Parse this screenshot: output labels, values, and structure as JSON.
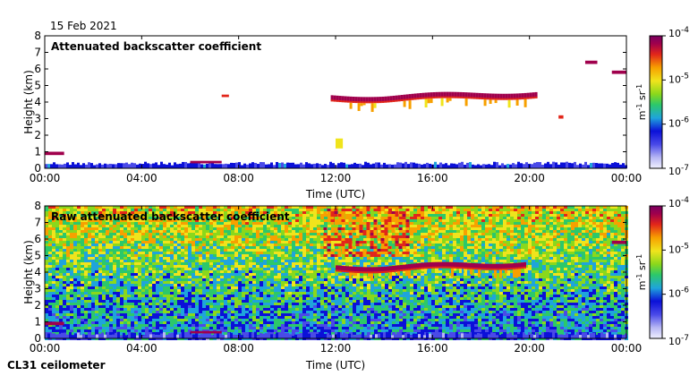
{
  "date": "15 Feb 2021",
  "instrument": "CL31 ceilometer",
  "colors": {
    "scale": [
      "#f0f0ff",
      "#b8b8f4",
      "#4a4ae8",
      "#0b10d8",
      "#1fa4dc",
      "#2cc86a",
      "#8ad81c",
      "#f0e41c",
      "#f7a000",
      "#e2261a",
      "#a0004c",
      "#780060"
    ]
  },
  "chart_data": [
    {
      "type": "heatmap",
      "title": "Attenuated backscatter coefficient",
      "xlabel": "Time (UTC)",
      "ylabel": "Height (km)",
      "xlim": [
        0,
        24
      ],
      "ylim": [
        0,
        8
      ],
      "xticks": [
        0,
        4,
        8,
        12,
        16,
        20,
        24
      ],
      "xtick_labels": [
        "00:00",
        "04:00",
        "08:00",
        "12:00",
        "16:00",
        "20:00",
        "00:00"
      ],
      "yticks": [
        0,
        1,
        2,
        3,
        4,
        5,
        6,
        7,
        8
      ],
      "ytick_labels": [
        "0",
        "1",
        "2",
        "3",
        "4",
        "5",
        "6",
        "7",
        "8"
      ],
      "colorbar": {
        "scale": "log",
        "range": [
          1e-07,
          0.0001
        ],
        "ticks": [
          "10^-7",
          "10^-6",
          "10^-5",
          "10^-4"
        ],
        "label_base": "m",
        "label_exp1": "-1",
        "label_mid": "sr",
        "label_exp2": "-1"
      },
      "layers": [
        {
          "name": "surface aerosol layer",
          "t_start": 0,
          "t_end": 24,
          "h_bottom": 0,
          "h_top": 0.4,
          "level": 0.25
        },
        {
          "name": "low layer segment",
          "t_start": 6,
          "t_end": 7.3,
          "h_bottom": 0.3,
          "h_top": 0.45,
          "level": 0.95
        },
        {
          "name": "early low cloud",
          "t_start": 0,
          "t_end": 0.8,
          "h_bottom": 0.8,
          "h_top": 1.0,
          "level": 0.9
        },
        {
          "name": "mid-level cloud",
          "t_start": 11.8,
          "t_end": 20.3,
          "h_bottom": 3.9,
          "h_top": 4.6,
          "level": 0.95
        },
        {
          "name": "upper cloud",
          "t_start": 22.3,
          "t_end": 22.8,
          "h_bottom": 6.3,
          "h_top": 6.5,
          "level": 0.9
        },
        {
          "name": "upper cloud right",
          "t_start": 23.4,
          "t_end": 24,
          "h_bottom": 5.7,
          "h_top": 5.9,
          "level": 0.9
        },
        {
          "name": "small cloud",
          "t_start": 7.3,
          "t_end": 7.6,
          "h_bottom": 4.3,
          "h_top": 4.45,
          "level": 0.85
        },
        {
          "name": "cloud fragment",
          "t_start": 21.2,
          "t_end": 21.4,
          "h_bottom": 3.0,
          "h_top": 3.2,
          "level": 0.85
        },
        {
          "name": "lower cloud fragment",
          "t_start": 12,
          "t_end": 12.3,
          "h_bottom": 1.2,
          "h_top": 1.8,
          "level": 0.6
        }
      ]
    },
    {
      "type": "heatmap",
      "title": "Raw attenuated backscatter coefficient",
      "xlabel": "Time (UTC)",
      "ylabel": "Height (km)",
      "xlim": [
        0,
        24
      ],
      "ylim": [
        0,
        8
      ],
      "xticks": [
        0,
        4,
        8,
        12,
        16,
        20,
        24
      ],
      "xtick_labels": [
        "00:00",
        "04:00",
        "08:00",
        "12:00",
        "16:00",
        "20:00",
        "00:00"
      ],
      "yticks": [
        0,
        1,
        2,
        3,
        4,
        5,
        6,
        7,
        8
      ],
      "ytick_labels": [
        "0",
        "1",
        "2",
        "3",
        "4",
        "5",
        "6",
        "7",
        "8"
      ],
      "colorbar": {
        "scale": "log",
        "range": [
          1e-07,
          0.0001
        ],
        "ticks": [
          "10^-7",
          "10^-6",
          "10^-5",
          "10^-4"
        ],
        "label_base": "m",
        "label_exp1": "-1",
        "label_mid": "sr",
        "label_exp2": "-1"
      },
      "layers": [
        {
          "name": "noise background (increases with height)",
          "t_start": 0,
          "t_end": 24,
          "h_bottom": 0,
          "h_top": 8,
          "level": 0.55
        },
        {
          "name": "surface aerosol layer",
          "t_start": 0,
          "t_end": 24,
          "h_bottom": 0,
          "h_top": 0.4,
          "level": 0.2
        },
        {
          "name": "low layer segment",
          "t_start": 6,
          "t_end": 7.3,
          "h_bottom": 0.3,
          "h_top": 0.45,
          "level": 0.95
        },
        {
          "name": "early low cloud",
          "t_start": 0,
          "t_end": 0.8,
          "h_bottom": 0.8,
          "h_top": 1.0,
          "level": 0.9
        },
        {
          "name": "mid-level cloud",
          "t_start": 12,
          "t_end": 19.8,
          "h_bottom": 3.9,
          "h_top": 4.6,
          "level": 0.95
        },
        {
          "name": "daytime noise (solar background)",
          "t_start": 11.5,
          "t_end": 15,
          "h_bottom": 5,
          "h_top": 8,
          "level": 0.78
        },
        {
          "name": "upper cloud right",
          "t_start": 23.4,
          "t_end": 24,
          "h_bottom": 5.7,
          "h_top": 5.9,
          "level": 0.9
        }
      ]
    }
  ]
}
